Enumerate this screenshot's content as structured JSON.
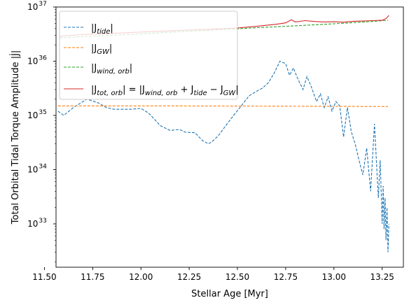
{
  "chart_data": {
    "type": "line",
    "xlabel": "Stellar Age [Myr]",
    "ylabel": "Total Orbital Tidal Torque Amplitude |J̇|",
    "y_scale": "log",
    "xlim": [
      11.56,
      13.36
    ],
    "ylim_exp": [
      32.2,
      37.0
    ],
    "xticks": [
      "11.50",
      "11.75",
      "12.00",
      "12.25",
      "12.50",
      "12.75",
      "13.00",
      "13.25"
    ],
    "xtick_values": [
      11.5,
      11.75,
      12.0,
      12.25,
      12.5,
      12.75,
      13.0,
      13.25
    ],
    "ytick_exponents": [
      33,
      34,
      35,
      36,
      37
    ],
    "ytick_base": "10",
    "grid": false,
    "legend_position": "top-left",
    "series": [
      {
        "name": "|J̇_tide|",
        "color": "#1f77b4",
        "dash": "dashed",
        "x": [
          11.57,
          11.6,
          11.65,
          11.7,
          11.72,
          11.78,
          11.82,
          11.86,
          11.9,
          11.95,
          12.0,
          12.04,
          12.07,
          12.1,
          12.15,
          12.2,
          12.23,
          12.28,
          12.32,
          12.35,
          12.37,
          12.4,
          12.44,
          12.48,
          12.52,
          12.56,
          12.6,
          12.63,
          12.66,
          12.69,
          12.72,
          12.75,
          12.77,
          12.79,
          12.81,
          12.84,
          12.86,
          12.88,
          12.91,
          12.93,
          12.95,
          12.97,
          12.99,
          13.01,
          13.03,
          13.05,
          13.07,
          13.09,
          13.11,
          13.13,
          13.15,
          13.17,
          13.19,
          13.21,
          13.23,
          13.24,
          13.25,
          13.255,
          13.26,
          13.265,
          13.27,
          13.275,
          13.28,
          13.285
        ],
        "y": [
          1.2e+35,
          1e+35,
          1.4e+35,
          1.8e+35,
          2e+35,
          1.7e+35,
          1.4e+35,
          1.3e+35,
          1.3e+35,
          1.3e+35,
          1.35e+35,
          1.1e+35,
          8.5e+34,
          6.5e+34,
          5.3e+34,
          5.5e+34,
          4.9e+34,
          4.8e+34,
          3.4e+34,
          3e+34,
          3.3e+34,
          4.2e+34,
          6.5e+34,
          1e+35,
          1.5e+35,
          2.3e+35,
          2.8e+35,
          3.2e+35,
          4e+35,
          6e+35,
          1e+36,
          9e+35,
          5.5e+35,
          7.5e+35,
          5e+35,
          3e+35,
          5.2e+35,
          3.6e+35,
          1.8e+35,
          2.5e+35,
          1.4e+35,
          2.2e+35,
          1.2e+35,
          1.8e+35,
          1.5e+35,
          4e+34,
          1.4e+35,
          5e+34,
          3e+34,
          1.5e+34,
          8e+33,
          2.5e+34,
          4e+33,
          7e+34,
          3e+33,
          1.5e+34,
          1e+33,
          5e+33,
          8e+32,
          3e+33,
          5e+32,
          2e+33,
          3e+32,
          1e+33
        ]
      },
      {
        "name": "|J̇_GW|",
        "color": "#ff7f0e",
        "dash": "dashed",
        "x": [
          11.57,
          11.8,
          12.1,
          12.4,
          12.7,
          13.0,
          13.28
        ],
        "y": [
          1.5e+35,
          1.5e+35,
          1.5e+35,
          1.49e+35,
          1.48e+35,
          1.47e+35,
          1.46e+35
        ]
      },
      {
        "name": "|J̇_wind,orb|",
        "color": "#2ca02c",
        "dash": "dashed",
        "x": [
          11.58,
          11.8,
          12.0,
          12.2,
          12.4,
          12.6,
          12.8,
          13.0,
          13.2,
          13.28
        ],
        "y": [
          2.7e+36,
          2.95e+36,
          3.2e+36,
          3.5e+36,
          3.8e+36,
          4.15e+36,
          4.5e+36,
          4.9e+36,
          5.4e+36,
          5.7e+36
        ]
      },
      {
        "name": "|J̇_tot,orb| = |J̇_wind,orb + J̇_tide − J̇_GW|",
        "color": "#d62728",
        "dash": "solid",
        "x": [
          11.58,
          11.7,
          11.8,
          12.0,
          12.2,
          12.4,
          12.5,
          12.6,
          12.7,
          12.75,
          12.78,
          12.8,
          12.85,
          12.9,
          12.95,
          13.0,
          13.05,
          13.1,
          13.15,
          13.2,
          13.25,
          13.27,
          13.285
        ],
        "y": [
          2.9e+36,
          3.1e+36,
          3.2e+36,
          3.45e+36,
          3.7e+36,
          3.95e+36,
          4.1e+36,
          4.4e+36,
          4.8e+36,
          5.1e+36,
          5.8e+36,
          5.3e+36,
          5.6e+36,
          5.4e+36,
          5.3e+36,
          5.35e+36,
          5.25e+36,
          5.45e+36,
          5.5e+36,
          5.6e+36,
          5.7e+36,
          6.1e+36,
          7e+36
        ]
      }
    ],
    "legend_entries": [
      {
        "label_main": "|J",
        "label_sub": "tide",
        "label_end": "|"
      },
      {
        "label_main": "|J",
        "label_sub": "GW",
        "label_end": "|"
      },
      {
        "label_main": "|J",
        "label_sub": "wind, orb",
        "label_end": "|"
      },
      {
        "label_main": "|J",
        "label_sub": "tot, orb",
        "label_end": "| = |J",
        "label_sub2": "wind, orb",
        "label_mid2": " + J",
        "label_sub3": "tide",
        "label_mid3": " − J",
        "label_sub4": "GW",
        "label_end2": "|"
      }
    ]
  }
}
